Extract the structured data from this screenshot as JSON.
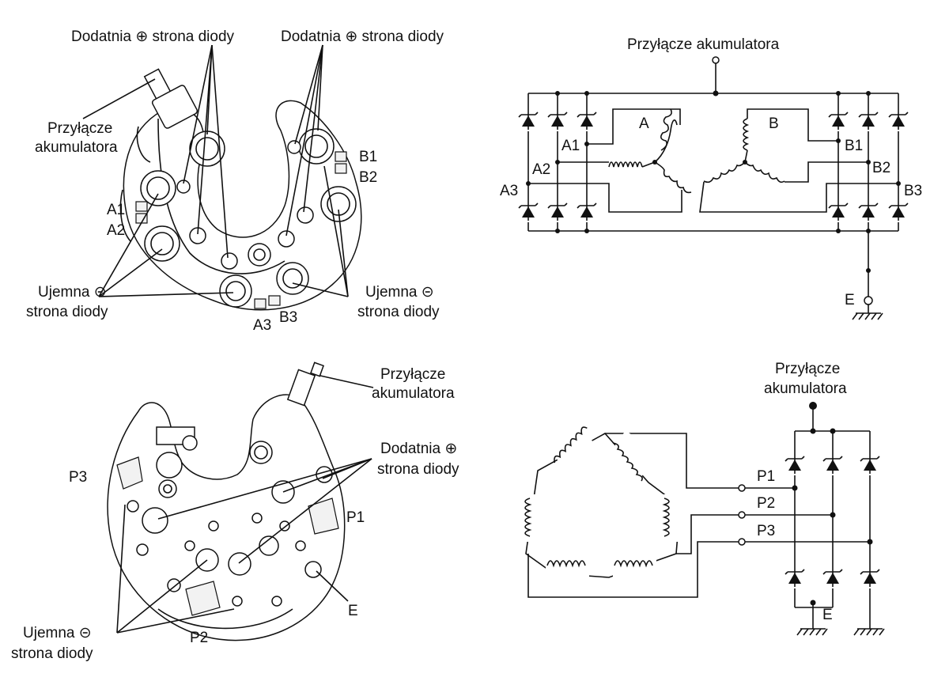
{
  "text": {
    "positive_side": "Dodatnia ⊕ strona diody",
    "positive_side_line1": "Dodatnia ⊕",
    "positive_side_line2": "strona diody",
    "negative_side_line1": "Ujemna ⊝",
    "negative_side_line2": "strona diody",
    "battery_terminal": "Przyłącze akumulatora",
    "battery_terminal_line1": "Przyłącze",
    "battery_terminal_line2": "akumulatora"
  },
  "terminals_top": {
    "A1": "A1",
    "A2": "A2",
    "A3": "A3",
    "B1": "B1",
    "B2": "B2",
    "B3": "B3",
    "A": "A",
    "B": "B",
    "E": "E"
  },
  "terminals_bottom": {
    "P1": "P1",
    "P2": "P2",
    "P3": "P3",
    "E": "E"
  }
}
